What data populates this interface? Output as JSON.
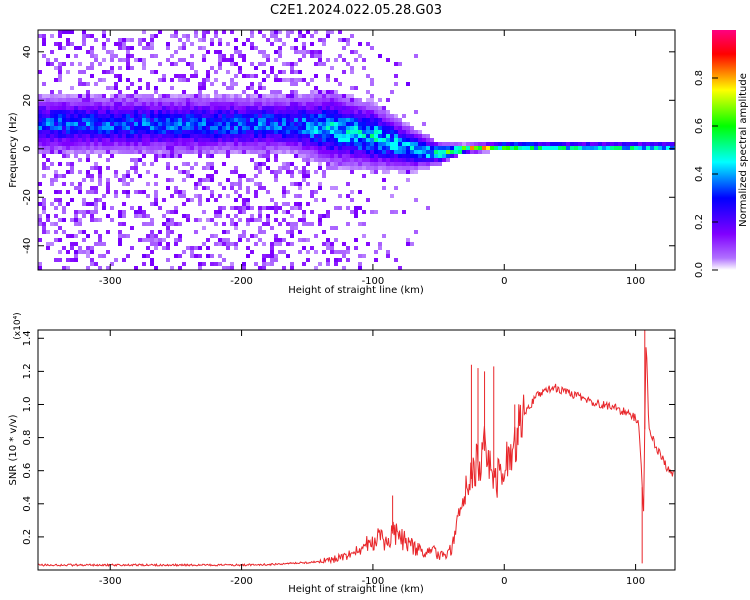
{
  "title": "C2E1.2024.022.05.28.G03",
  "chart_data": [
    {
      "type": "heatmap",
      "xlabel": "Height of straight line (km)",
      "ylabel": "Frequency (Hz)",
      "xlim": [
        -355,
        130
      ],
      "ylim": [
        -50,
        49
      ],
      "xticks": [
        -300,
        -200,
        -100,
        0,
        100
      ],
      "yticks": [
        -40,
        -20,
        0,
        20,
        40
      ],
      "colorbar": {
        "label": "Normalized spectral amplitude",
        "range": [
          0.0,
          1.0
        ],
        "ticks": [
          "0.0",
          "0.2",
          "0.4",
          "0.6",
          "0.8"
        ],
        "colormap": [
          "#ffffff",
          "#8000ff",
          "#0000ff",
          "#00ffff",
          "#00ff00",
          "#ffff00",
          "#ff0000",
          "#ff0080"
        ]
      },
      "signal_track": [
        {
          "x": -160,
          "freq": 10,
          "spread": 8,
          "amp": 0.35
        },
        {
          "x": -130,
          "freq": 8,
          "spread": 10,
          "amp": 0.45
        },
        {
          "x": -100,
          "freq": 5,
          "spread": 9,
          "amp": 0.45
        },
        {
          "x": -70,
          "freq": 0,
          "spread": 6,
          "amp": 0.4
        },
        {
          "x": -50,
          "freq": -2,
          "spread": 3,
          "amp": 0.5
        },
        {
          "x": -30,
          "freq": 0,
          "spread": 1.2,
          "amp": 0.7
        },
        {
          "x": 0,
          "freq": 1,
          "spread": 1,
          "amp": 0.85
        },
        {
          "x": 50,
          "freq": 1,
          "spread": 0.8,
          "amp": 0.95
        },
        {
          "x": 100,
          "freq": 1,
          "spread": 0.8,
          "amp": 0.95
        },
        {
          "x": 130,
          "freq": 1,
          "spread": 0.8,
          "amp": 0.9
        }
      ]
    },
    {
      "type": "line",
      "xlabel": "Height of straight line (km)",
      "ylabel": "SNR (10 * v/v)",
      "y_multiplier": "(x10⁴)",
      "xlim": [
        -355,
        130
      ],
      "ylim": [
        0,
        1.45
      ],
      "xticks": [
        -300,
        -200,
        -100,
        0,
        100
      ],
      "yticks": [
        0.2,
        0.4,
        0.6,
        0.8,
        1.0,
        1.2,
        1.4
      ],
      "color": "#e8262a",
      "series": [
        {
          "x": [
            -355,
            -300,
            -250,
            -200,
            -170,
            -140,
            -120,
            -110,
            -100,
            -95,
            -90,
            -85,
            -80,
            -70,
            -60,
            -55,
            -50,
            -45,
            -40,
            -35,
            -30,
            -25,
            -20,
            -15,
            -10,
            -5,
            0,
            5,
            10,
            15,
            20,
            25,
            30,
            35,
            40,
            45,
            50,
            55,
            60,
            65,
            70,
            75,
            80,
            85,
            90,
            95,
            100,
            102,
            104,
            106,
            108,
            110,
            112,
            115,
            120,
            125,
            130
          ],
          "y": [
            0.03,
            0.03,
            0.03,
            0.03,
            0.035,
            0.05,
            0.08,
            0.12,
            0.18,
            0.2,
            0.16,
            0.22,
            0.2,
            0.14,
            0.1,
            0.12,
            0.08,
            0.1,
            0.14,
            0.3,
            0.45,
            0.55,
            0.65,
            0.72,
            0.62,
            0.55,
            0.6,
            0.75,
            0.85,
            0.95,
            1.0,
            1.05,
            1.08,
            1.1,
            1.1,
            1.08,
            1.07,
            1.05,
            1.04,
            1.02,
            1.01,
            1.0,
            0.99,
            0.98,
            0.96,
            0.94,
            0.92,
            0.9,
            0.7,
            0.3,
            1.4,
            0.88,
            0.82,
            0.75,
            0.68,
            0.6,
            0.58
          ]
        }
      ],
      "spikes": [
        {
          "x": -85,
          "y": 0.45
        },
        {
          "x": -25,
          "y": 1.24
        },
        {
          "x": -20,
          "y": 1.22
        },
        {
          "x": -15,
          "y": 1.2
        },
        {
          "x": -8,
          "y": 1.23
        },
        {
          "x": 8,
          "y": 1.0
        },
        {
          "x": 105,
          "y": 0.04
        },
        {
          "x": 107,
          "y": 1.45
        }
      ]
    }
  ]
}
